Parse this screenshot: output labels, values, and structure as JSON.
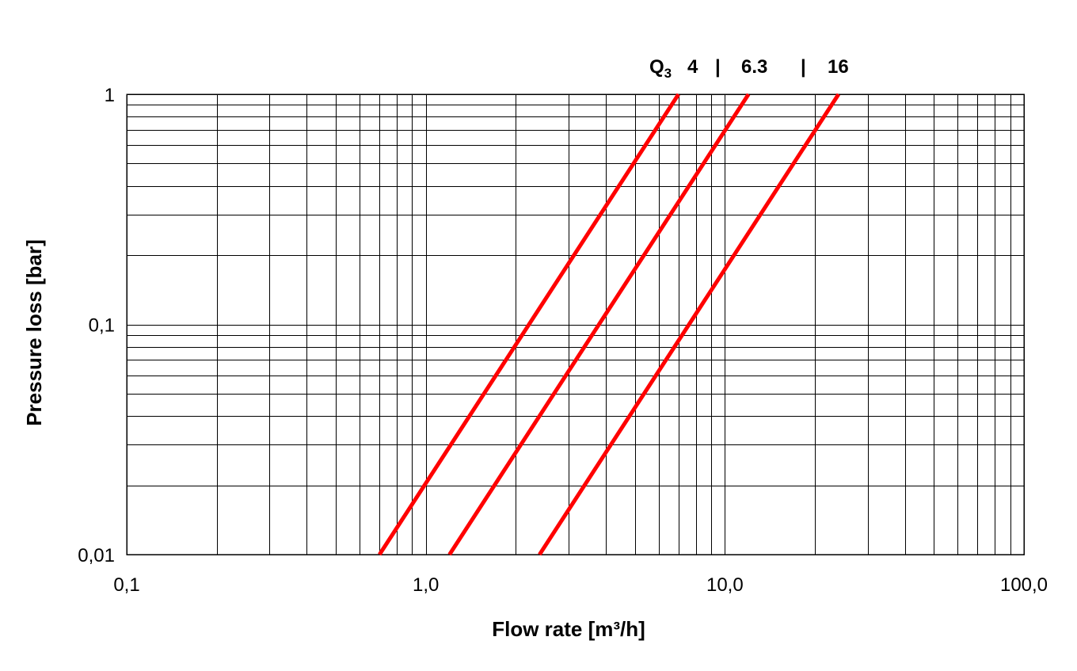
{
  "chart_data": {
    "type": "line",
    "title": "",
    "xlabel": "Flow rate [m³/h]",
    "ylabel": "Pressure loss [bar]",
    "x_scale": "log",
    "y_scale": "log",
    "xlim": [
      0.1,
      100
    ],
    "ylim": [
      0.01,
      1
    ],
    "grid": true,
    "x_tick_labels": [
      {
        "value": 0.1,
        "label": "0,1"
      },
      {
        "value": 1,
        "label": "1,0"
      },
      {
        "value": 10,
        "label": "10,0"
      },
      {
        "value": 100,
        "label": "100,0"
      }
    ],
    "y_tick_labels": [
      {
        "value": 1,
        "label": "1"
      },
      {
        "value": 0.1,
        "label": "0,1"
      },
      {
        "value": 0.01,
        "label": "0,01"
      }
    ],
    "header": {
      "q_symbol": "Q",
      "q_subscript": "3",
      "values": [
        "4",
        "6.3",
        "16"
      ],
      "separator": "|"
    },
    "series_color": "#ff0000",
    "series": [
      {
        "x": [
          0.7,
          7.0
        ],
        "y": [
          0.01,
          1
        ]
      },
      {
        "x": [
          1.2,
          12.0
        ],
        "y": [
          0.01,
          1
        ]
      },
      {
        "x": [
          2.4,
          24.0
        ],
        "y": [
          0.01,
          1
        ]
      }
    ]
  }
}
